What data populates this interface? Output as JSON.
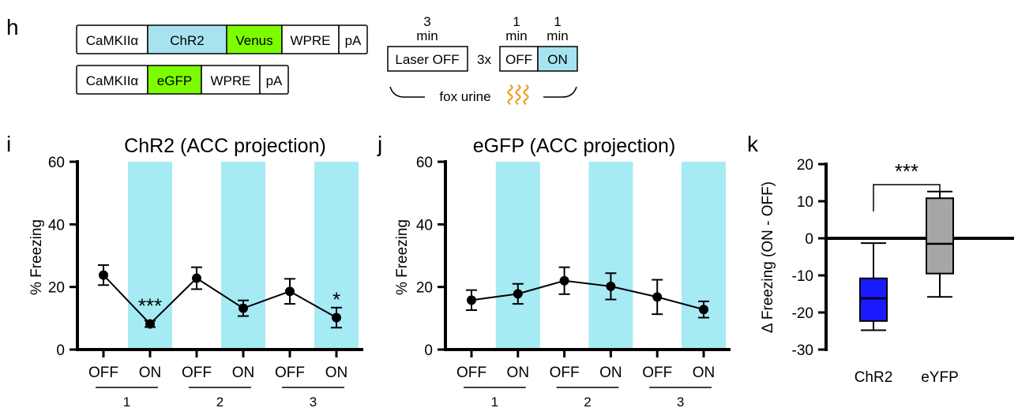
{
  "panels": {
    "h": {
      "letter": "h",
      "construct1": [
        "CaMKIIα",
        "ChR2",
        "Venus",
        "WPRE",
        "pA"
      ],
      "construct2": [
        "CaMKIIα",
        "eGFP",
        "WPRE",
        "pA"
      ],
      "protocol": {
        "t1_num": "3",
        "t1_unit": "min",
        "t2_num": "1",
        "t2_unit": "min",
        "t3_num": "1",
        "t3_unit": "min",
        "laser_off": "Laser OFF",
        "repeat": "3x",
        "off": "OFF",
        "on": "ON",
        "stimulus": "fox urine"
      }
    },
    "i": {
      "letter": "i"
    },
    "j": {
      "letter": "j"
    },
    "k": {
      "letter": "k"
    }
  },
  "colors": {
    "cyan_construct": "#a6e3ef",
    "green_construct": "#7cfc00",
    "shade": "#a6eaf4",
    "wave": "#f0a020",
    "chr2_box": "#1a1aff",
    "eyfp_box": "#a6a6a6"
  },
  "chart_data": [
    {
      "type": "line",
      "panel": "i",
      "title": "ChR2 (ACC projection)",
      "ylabel": "% Freezing",
      "xlabel": "",
      "ylim": [
        0,
        60
      ],
      "yticks": [
        0,
        20,
        40,
        60
      ],
      "categories": [
        "OFF",
        "ON",
        "OFF",
        "ON",
        "OFF",
        "ON"
      ],
      "groups": [
        "1",
        "2",
        "3"
      ],
      "shaded": [
        1,
        3,
        5
      ],
      "values": [
        23.8,
        8.2,
        22.8,
        13.2,
        18.6,
        10.2
      ],
      "errors": [
        3.2,
        1.0,
        3.5,
        2.5,
        4.0,
        3.2
      ],
      "annotations": [
        {
          "index": 1,
          "text": "***"
        },
        {
          "index": 5,
          "text": "*"
        }
      ]
    },
    {
      "type": "line",
      "panel": "j",
      "title": "eGFP (ACC projection)",
      "ylabel": "% Freezing",
      "xlabel": "",
      "ylim": [
        0,
        60
      ],
      "yticks": [
        0,
        20,
        40,
        60
      ],
      "categories": [
        "OFF",
        "ON",
        "OFF",
        "ON",
        "OFF",
        "ON"
      ],
      "groups": [
        "1",
        "2",
        "3"
      ],
      "shaded": [
        1,
        3,
        5
      ],
      "values": [
        15.8,
        17.8,
        22.0,
        20.2,
        16.8,
        12.8
      ],
      "errors": [
        3.2,
        3.2,
        4.3,
        4.2,
        5.5,
        2.6
      ],
      "annotations": []
    },
    {
      "type": "box",
      "panel": "k",
      "title": "",
      "ylabel": "Δ Freezing (ON - OFF)",
      "xlabel": "",
      "ylim": [
        -30,
        20
      ],
      "yticks": [
        -30,
        -20,
        -10,
        0,
        10,
        20
      ],
      "categories": [
        "ChR2",
        "eYFP"
      ],
      "boxes": [
        {
          "min": -24.8,
          "q1": -22.3,
          "median": -16.2,
          "q3": -10.8,
          "max": -1.3
        },
        {
          "min": -15.8,
          "q1": -9.5,
          "median": -1.5,
          "q3": 10.8,
          "max": 12.6
        }
      ],
      "significance": "***"
    }
  ]
}
